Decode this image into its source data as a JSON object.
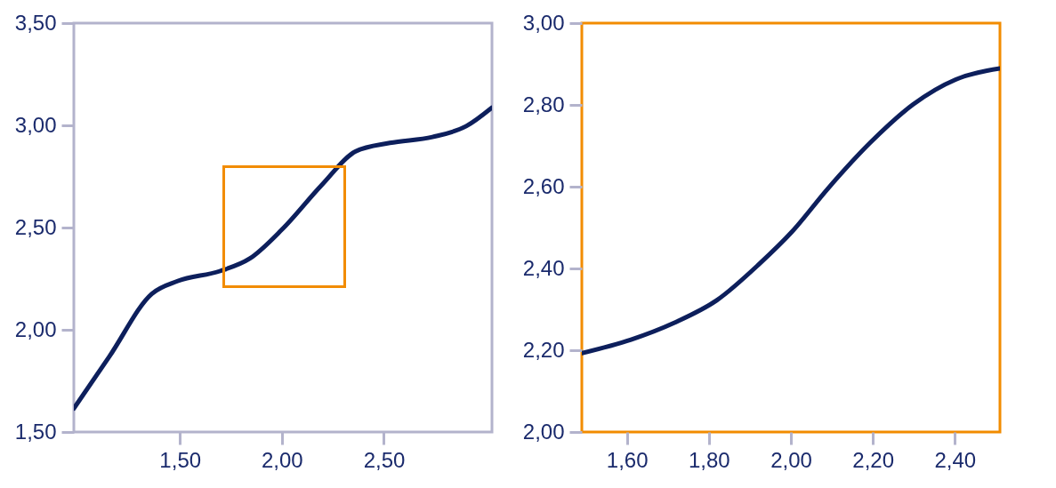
{
  "chart_data": [
    {
      "type": "line",
      "x": [
        0.98,
        1.154,
        1.362,
        1.488,
        1.696,
        1.842,
        2.0,
        2.196,
        2.362,
        2.529,
        2.738,
        2.904,
        3.029
      ],
      "series": [
        {
          "color": "#0d1f5c",
          "values": [
            1.615,
            1.869,
            2.176,
            2.238,
            2.287,
            2.348,
            2.49,
            2.709,
            2.873,
            2.914,
            2.943,
            2.996,
            3.086
          ]
        }
      ],
      "xlim": [
        0.98,
        3.03
      ],
      "ylim": [
        1.5,
        3.5
      ],
      "xticks": [
        {
          "value": 1.5,
          "label": "1,50"
        },
        {
          "value": 2.0,
          "label": "2,00"
        },
        {
          "value": 2.5,
          "label": "2,50"
        }
      ],
      "yticks": [
        {
          "value": 1.5,
          "label": "1,50"
        },
        {
          "value": 2.0,
          "label": "2,00"
        },
        {
          "value": 2.5,
          "label": "2,50"
        },
        {
          "value": 3.0,
          "label": "3,00"
        },
        {
          "value": 3.5,
          "label": "3,50"
        }
      ]
    },
    {
      "type": "line",
      "x": [
        1.49,
        1.61,
        1.715,
        1.819,
        1.923,
        2.002,
        2.09,
        2.194,
        2.298,
        2.402,
        2.51
      ],
      "series": [
        {
          "color": "#0d1f5c",
          "values": [
            2.193,
            2.226,
            2.267,
            2.322,
            2.411,
            2.489,
            2.595,
            2.708,
            2.801,
            2.862,
            2.889
          ]
        }
      ],
      "xlim": [
        1.49,
        2.51
      ],
      "ylim": [
        2.0,
        3.0
      ],
      "xticks": [
        {
          "value": 1.6,
          "label": "1,60"
        },
        {
          "value": 1.8,
          "label": "1,80"
        },
        {
          "value": 2.0,
          "label": "2,00"
        },
        {
          "value": 2.2,
          "label": "2,20"
        },
        {
          "value": 2.4,
          "label": "2,40"
        }
      ],
      "yticks": [
        {
          "value": 2.0,
          "label": "2,00"
        },
        {
          "value": 2.2,
          "label": "2,20"
        },
        {
          "value": 2.4,
          "label": "2,40"
        },
        {
          "value": 2.6,
          "label": "2,60"
        },
        {
          "value": 2.8,
          "label": "2,80"
        },
        {
          "value": 3.0,
          "label": "3,00"
        }
      ]
    }
  ]
}
